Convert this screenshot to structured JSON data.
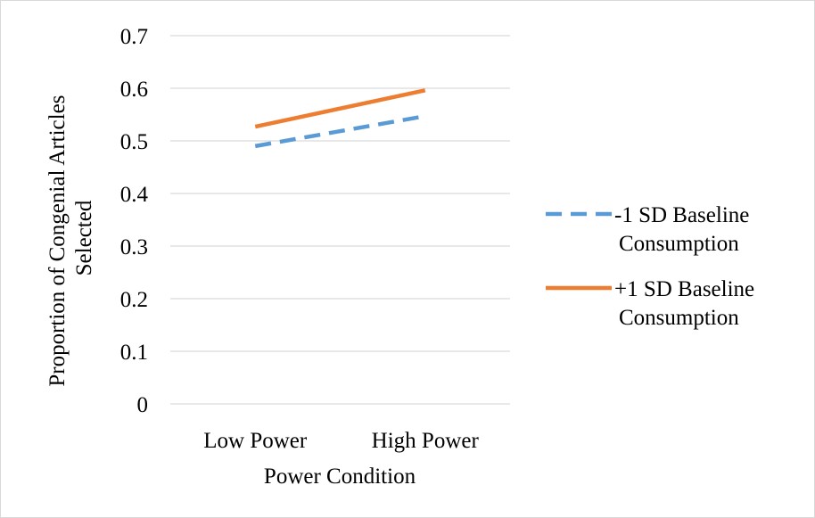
{
  "chart_data": {
    "type": "line",
    "title": "",
    "xlabel": "Power Condition",
    "ylabel_lines": [
      "Proportion of Congenial Articles",
      "Selected"
    ],
    "categories": [
      "Low Power",
      "High Power"
    ],
    "ylim": [
      0,
      0.7
    ],
    "yticks": [
      "0",
      "0.1",
      "0.2",
      "0.3",
      "0.4",
      "0.5",
      "0.6",
      "0.7"
    ],
    "grid": true,
    "legend_position": "right",
    "series": [
      {
        "name_lines": [
          "-1 SD Baseline",
          "Consumption"
        ],
        "values": [
          0.49,
          0.547
        ],
        "color": "#5b9bd5",
        "style": "dashed"
      },
      {
        "name_lines": [
          "+1 SD Baseline",
          "Consumption"
        ],
        "values": [
          0.527,
          0.596
        ],
        "color": "#ed7d31",
        "style": "solid"
      }
    ]
  }
}
